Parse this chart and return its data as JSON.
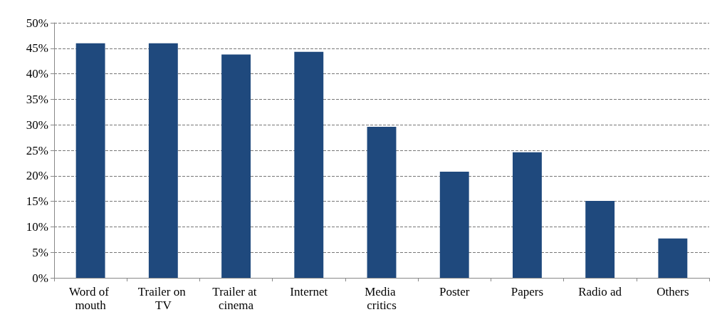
{
  "chart_data": {
    "type": "bar",
    "categories": [
      "Word of mouth",
      "Trailer on TV",
      "Trailer at cinema",
      "Internet",
      "Media critics",
      "Poster",
      "Papers",
      "Radio ad",
      "Others"
    ],
    "values": [
      46,
      46,
      43.8,
      44.3,
      29.6,
      20.8,
      24.6,
      15.1,
      7.7
    ],
    "color": "#1f497d",
    "ylim": [
      0,
      50
    ],
    "yticks": [
      {
        "value": 0,
        "label": "0%"
      },
      {
        "value": 5,
        "label": "5%"
      },
      {
        "value": 10,
        "label": "10%"
      },
      {
        "value": 15,
        "label": "15%"
      },
      {
        "value": 20,
        "label": "20%"
      },
      {
        "value": 25,
        "label": "25%"
      },
      {
        "value": 30,
        "label": "30%"
      },
      {
        "value": 35,
        "label": "35%"
      },
      {
        "value": 40,
        "label": "40%"
      },
      {
        "value": 45,
        "label": "45%"
      },
      {
        "value": 50,
        "label": "50%"
      }
    ],
    "grid": "y"
  }
}
